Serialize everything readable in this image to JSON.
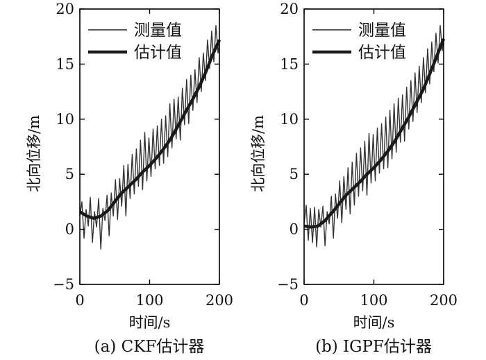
{
  "chart_data": [
    {
      "type": "line",
      "caption": "(a) CKF估计器",
      "xlabel": "时间/s",
      "ylabel": "北向位移/m",
      "xlim": [
        0,
        200
      ],
      "ylim": [
        -5,
        20
      ],
      "xticks": [
        0,
        100,
        200
      ],
      "yticks": [
        -5,
        0,
        5,
        10,
        15,
        20
      ],
      "legend": {
        "position": "top-left",
        "entries": [
          "测量值",
          "估计值"
        ]
      },
      "grid": false,
      "series": [
        {
          "name": "测量值",
          "style": "thin",
          "x": [
            0,
            3,
            6,
            9,
            12,
            15,
            18,
            21,
            24,
            27,
            30,
            33,
            36,
            39,
            42,
            45,
            48,
            51,
            54,
            57,
            60,
            63,
            66,
            69,
            72,
            75,
            78,
            81,
            84,
            87,
            90,
            93,
            96,
            99,
            102,
            105,
            108,
            111,
            114,
            117,
            120,
            123,
            126,
            129,
            132,
            135,
            138,
            141,
            144,
            147,
            150,
            153,
            156,
            159,
            162,
            165,
            168,
            171,
            174,
            177,
            180,
            183,
            186,
            189,
            192,
            195,
            198,
            200
          ],
          "y": [
            1.2,
            2.5,
            -0.8,
            1.8,
            0.3,
            2.9,
            -1.2,
            1.6,
            0.2,
            2.8,
            -1.8,
            1.9,
            0.8,
            3.1,
            -0.6,
            3.3,
            1.2,
            4.5,
            0.9,
            4.6,
            2.1,
            5.8,
            1.2,
            5.9,
            2.8,
            6.8,
            3.2,
            7.3,
            3.9,
            8.1,
            3.6,
            8.8,
            4.4,
            8.3,
            4.8,
            9.1,
            5.5,
            9.4,
            5.8,
            10.0,
            6.0,
            10.3,
            6.6,
            11.4,
            7.4,
            11.8,
            8.2,
            12.0,
            8.1,
            12.8,
            9.5,
            13.6,
            9.6,
            14.0,
            10.8,
            14.5,
            11.5,
            15.6,
            12.5,
            16.0,
            13.5,
            17.2,
            14.6,
            18.0,
            15.2,
            18.5,
            16.0,
            17.0
          ]
        },
        {
          "name": "估计值",
          "style": "thick",
          "x": [
            0,
            10,
            20,
            30,
            40,
            50,
            60,
            70,
            80,
            90,
            100,
            110,
            120,
            130,
            140,
            150,
            160,
            170,
            180,
            190,
            200
          ],
          "y": [
            1.6,
            1.2,
            1.0,
            1.2,
            1.7,
            2.5,
            3.3,
            3.9,
            4.5,
            5.2,
            5.8,
            6.5,
            7.3,
            8.2,
            9.3,
            10.5,
            11.6,
            12.8,
            14.2,
            15.8,
            17.2
          ]
        }
      ]
    },
    {
      "type": "line",
      "caption": "(b) IGPF估计器",
      "xlabel": "时间/s",
      "ylabel": "北向位移/m",
      "xlim": [
        0,
        200
      ],
      "ylim": [
        -5,
        20
      ],
      "xticks": [
        0,
        100,
        200
      ],
      "yticks": [
        -5,
        0,
        5,
        10,
        15,
        20
      ],
      "legend": {
        "position": "top-left",
        "entries": [
          "测量值",
          "估计值"
        ]
      },
      "grid": false,
      "series": [
        {
          "name": "测量值",
          "style": "thin",
          "x": [
            0,
            3,
            6,
            9,
            12,
            15,
            18,
            21,
            24,
            27,
            30,
            33,
            36,
            39,
            42,
            45,
            48,
            51,
            54,
            57,
            60,
            63,
            66,
            69,
            72,
            75,
            78,
            81,
            84,
            87,
            90,
            93,
            96,
            99,
            102,
            105,
            108,
            111,
            114,
            117,
            120,
            123,
            126,
            129,
            132,
            135,
            138,
            141,
            144,
            147,
            150,
            153,
            156,
            159,
            162,
            165,
            168,
            171,
            174,
            177,
            180,
            183,
            186,
            189,
            192,
            195,
            198,
            200
          ],
          "y": [
            0.5,
            2.2,
            -1.0,
            1.9,
            -1.2,
            2.0,
            -1.6,
            1.8,
            0.2,
            2.1,
            -1.5,
            1.6,
            0.5,
            3.0,
            -0.8,
            3.2,
            1.0,
            4.4,
            0.6,
            4.8,
            1.8,
            5.6,
            1.4,
            6.1,
            2.2,
            6.9,
            3.0,
            7.4,
            3.5,
            8.0,
            3.1,
            8.7,
            4.2,
            8.6,
            4.4,
            9.2,
            5.1,
            9.6,
            5.5,
            10.2,
            5.6,
            10.8,
            6.4,
            11.4,
            7.0,
            11.9,
            7.9,
            12.2,
            8.0,
            12.9,
            9.1,
            13.5,
            9.8,
            14.2,
            10.6,
            14.8,
            11.5,
            15.6,
            12.4,
            16.4,
            13.2,
            17.0,
            14.3,
            17.8,
            15.1,
            18.5,
            16.2,
            17.5
          ]
        },
        {
          "name": "估计值",
          "style": "thick",
          "x": [
            0,
            10,
            20,
            30,
            40,
            50,
            60,
            70,
            80,
            90,
            100,
            110,
            120,
            130,
            140,
            150,
            160,
            170,
            180,
            190,
            200
          ],
          "y": [
            0.3,
            0.2,
            0.3,
            0.8,
            1.5,
            2.3,
            3.1,
            3.7,
            4.3,
            5.0,
            5.6,
            6.3,
            7.1,
            8.0,
            9.1,
            10.2,
            11.4,
            12.6,
            14.1,
            15.7,
            17.3
          ]
        }
      ]
    }
  ]
}
